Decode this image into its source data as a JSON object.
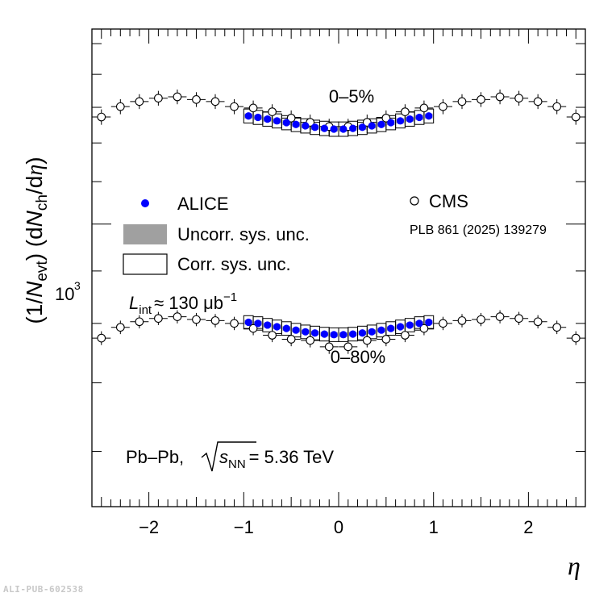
{
  "chart_data": {
    "type": "scatter",
    "title": "",
    "xlabel": "η",
    "ylabel": "(1/N_evt) (dN_ch/dη)",
    "xlim": [
      -2.6,
      2.6
    ],
    "ylim": [
      530,
      1550
    ],
    "yscale": "log",
    "x_ticks": [
      -2,
      -1,
      0,
      1,
      2
    ],
    "x_tick_labels": [
      "−2",
      "−1",
      "0",
      "1",
      "2"
    ],
    "y_tick_label": "10",
    "y_tick_label_exp": "3",
    "y_tick_value": 1000,
    "legend": {
      "alice": "ALICE",
      "uncorr": "Uncorr. sys. unc.",
      "corr": "Corr. sys. unc.",
      "cms": "CMS",
      "cms_ref": "PLB 861 (2025) 139279"
    },
    "annotations": {
      "lumi_L": "L",
      "lumi_sub": "int",
      "lumi_rest": "≈ 130 μb",
      "lumi_sup": "−1",
      "system": "Pb–Pb,",
      "energy_s": "s",
      "energy_sub": "NN",
      "energy_val": "= 5.36 TeV",
      "central": "0–5%",
      "minbias": "0–80%"
    },
    "ylabel_parts": {
      "p1": "(1/",
      "N": "N",
      "evt": "evt",
      "p2": ") (d",
      "ch": "ch",
      "p3": "/d",
      "eta": "η",
      "p4": ")"
    },
    "series": [
      {
        "name": "ALICE 0–5%",
        "marker": "filled-circle",
        "color": "#0000ff",
        "x": [
          -0.95,
          -0.85,
          -0.75,
          -0.65,
          -0.55,
          -0.45,
          -0.35,
          -0.25,
          -0.15,
          -0.05,
          0.05,
          0.15,
          0.25,
          0.35,
          0.45,
          0.55,
          0.65,
          0.75,
          0.85,
          0.95
        ],
        "y": [
          1275,
          1271,
          1266,
          1261,
          1256,
          1251,
          1247,
          1243,
          1240,
          1238,
          1238,
          1240,
          1243,
          1247,
          1251,
          1256,
          1261,
          1266,
          1271,
          1275
        ],
        "uncorr_err": 7,
        "corr_err": 20
      },
      {
        "name": "CMS 0–5%",
        "marker": "open-circle",
        "color": "#000000",
        "x": [
          -2.5,
          -2.3,
          -2.1,
          -1.9,
          -1.7,
          -1.5,
          -1.3,
          -1.1,
          -0.9,
          -0.7,
          -0.5,
          -0.3,
          -0.1,
          0.1,
          0.3,
          0.5,
          0.7,
          0.9,
          1.1,
          1.3,
          1.5,
          1.7,
          1.9,
          2.1,
          2.3,
          2.5
        ],
        "y": [
          1272,
          1302,
          1317,
          1327,
          1331,
          1323,
          1317,
          1302,
          1298,
          1287,
          1269,
          1257,
          1245,
          1245,
          1257,
          1269,
          1287,
          1298,
          1302,
          1317,
          1323,
          1331,
          1327,
          1317,
          1302,
          1272
        ],
        "err": 22
      },
      {
        "name": "ALICE 0–80%",
        "marker": "filled-circle",
        "color": "#0000ff",
        "x": [
          -0.95,
          -0.85,
          -0.75,
          -0.65,
          -0.55,
          -0.45,
          -0.35,
          -0.25,
          -0.15,
          -0.05,
          0.05,
          0.15,
          0.25,
          0.35,
          0.45,
          0.55,
          0.65,
          0.75,
          0.85,
          0.95
        ],
        "y": [
          802,
          800,
          797,
          794,
          791,
          788,
          785,
          783,
          781,
          780,
          780,
          781,
          783,
          785,
          788,
          791,
          794,
          797,
          800,
          802
        ],
        "uncorr_err": 4,
        "corr_err": 12
      },
      {
        "name": "CMS 0–80%",
        "marker": "open-circle",
        "color": "#000000",
        "x": [
          -2.5,
          -2.3,
          -2.1,
          -1.9,
          -1.7,
          -1.5,
          -1.3,
          -1.1,
          -0.9,
          -0.7,
          -0.5,
          -0.3,
          -0.1,
          0.1,
          0.3,
          0.5,
          0.7,
          0.9,
          1.1,
          1.3,
          1.5,
          1.7,
          1.9,
          2.1,
          2.3,
          2.5
        ],
        "y": [
          774,
          793,
          803,
          809,
          812,
          807,
          805,
          800,
          791,
          779,
          772,
          770,
          759,
          759,
          770,
          772,
          779,
          791,
          800,
          805,
          807,
          812,
          809,
          803,
          793,
          774
        ],
        "err": 12
      }
    ]
  },
  "footer": {
    "pub_id": "ALI-PUB-602538"
  }
}
